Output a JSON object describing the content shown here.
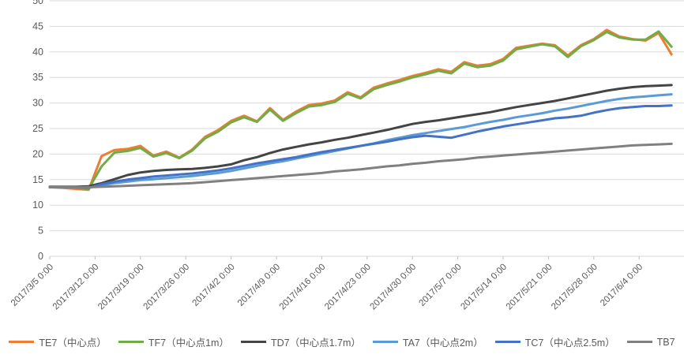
{
  "chart_data": {
    "type": "line",
    "title": "",
    "grid": true,
    "legend_position": "bottom",
    "x_axis": {
      "tick_labels": [
        "2017/3/5 0:00",
        "2017/3/12 0:00",
        "2017/3/19 0:00",
        "2017/3/26 0:00",
        "2017/4/2 0:00",
        "2017/4/9 0:00",
        "2017/4/16 0:00",
        "2017/4/23 0:00",
        "2017/4/30 0:00",
        "2017/5/7 0:00",
        "2017/5/14 0:00",
        "2017/5/21 0:00",
        "2017/5/28 0:00",
        "2017/6/4 0:00"
      ],
      "tick_days": [
        0,
        7,
        14,
        21,
        28,
        35,
        42,
        49,
        56,
        63,
        70,
        77,
        84,
        91
      ]
    },
    "y_axis": {
      "min": 0,
      "max": 50,
      "ticks": [
        0,
        5,
        10,
        15,
        20,
        25,
        30,
        35,
        40,
        45,
        50
      ]
    },
    "sample_days": [
      0,
      2,
      4,
      6,
      8,
      10,
      12,
      14,
      16,
      18,
      20,
      22,
      24,
      26,
      28,
      30,
      32,
      34,
      36,
      38,
      40,
      42,
      44,
      46,
      48,
      50,
      52,
      54,
      56,
      58,
      60,
      62,
      64,
      66,
      68,
      70,
      72,
      74,
      76,
      78,
      80,
      82,
      84,
      86,
      88,
      90,
      92,
      94,
      96
    ],
    "series": [
      {
        "name": "TE7（中心点）",
        "color": "#ED7D31",
        "values": [
          13.5,
          13.4,
          13.2,
          13.0,
          19.6,
          20.8,
          21.0,
          21.6,
          19.7,
          20.5,
          19.3,
          20.9,
          23.4,
          24.7,
          26.5,
          27.5,
          26.4,
          29.0,
          26.7,
          28.3,
          29.6,
          29.9,
          30.5,
          32.1,
          31.1,
          33.0,
          33.8,
          34.5,
          35.3,
          35.9,
          36.6,
          36.1,
          38.0,
          37.3,
          37.6,
          38.6,
          40.8,
          41.2,
          41.6,
          41.3,
          39.3,
          41.3,
          42.5,
          44.3,
          43.0,
          42.5,
          42.2,
          43.7,
          39.5
        ]
      },
      {
        "name": "TF7（中心点1m）",
        "color": "#70AD47",
        "values": [
          13.6,
          13.5,
          13.4,
          13.2,
          17.6,
          20.3,
          20.6,
          21.2,
          19.5,
          20.2,
          19.2,
          20.7,
          23.1,
          24.4,
          26.2,
          27.2,
          26.3,
          28.7,
          26.5,
          28.0,
          29.3,
          29.6,
          30.2,
          31.8,
          30.9,
          32.7,
          33.5,
          34.2,
          35.0,
          35.6,
          36.3,
          35.8,
          37.7,
          37.0,
          37.3,
          38.3,
          40.5,
          41.0,
          41.5,
          41.1,
          39.0,
          41.1,
          42.3,
          43.9,
          42.8,
          42.4,
          42.4,
          44.0,
          41.0
        ]
      },
      {
        "name": "TD7（中心点1.7m）",
        "color": "#444444",
        "values": [
          13.6,
          13.6,
          13.6,
          13.7,
          14.3,
          15.1,
          15.9,
          16.4,
          16.7,
          16.9,
          17.0,
          17.1,
          17.3,
          17.6,
          18.0,
          18.8,
          19.4,
          20.2,
          20.9,
          21.4,
          21.9,
          22.3,
          22.8,
          23.2,
          23.7,
          24.2,
          24.7,
          25.3,
          25.9,
          26.3,
          26.6,
          27.0,
          27.4,
          27.8,
          28.2,
          28.7,
          29.2,
          29.6,
          30.0,
          30.4,
          30.9,
          31.4,
          31.9,
          32.4,
          32.8,
          33.1,
          33.3,
          33.4,
          33.5
        ]
      },
      {
        "name": "TA7（中心点2m）",
        "color": "#5B9BD5",
        "values": [
          13.5,
          13.5,
          13.4,
          13.4,
          13.9,
          14.3,
          14.6,
          14.9,
          15.1,
          15.3,
          15.5,
          15.7,
          16.0,
          16.3,
          16.7,
          17.2,
          17.7,
          18.2,
          18.6,
          19.1,
          19.6,
          20.1,
          20.6,
          21.1,
          21.6,
          22.1,
          22.7,
          23.2,
          23.7,
          24.1,
          24.5,
          24.9,
          25.3,
          25.8,
          26.3,
          26.7,
          27.2,
          27.6,
          28.0,
          28.5,
          28.9,
          29.4,
          29.9,
          30.4,
          30.8,
          31.1,
          31.3,
          31.5,
          31.7
        ]
      },
      {
        "name": "TC7（中心点2.5m）",
        "color": "#4472C4",
        "values": [
          13.5,
          13.5,
          13.5,
          13.4,
          14.1,
          14.6,
          15.0,
          15.3,
          15.6,
          15.8,
          16.0,
          16.2,
          16.5,
          16.8,
          17.2,
          17.7,
          18.2,
          18.6,
          19.0,
          19.4,
          19.9,
          20.4,
          20.8,
          21.2,
          21.6,
          22.0,
          22.4,
          22.9,
          23.3,
          23.6,
          23.4,
          23.2,
          23.8,
          24.4,
          24.9,
          25.4,
          25.8,
          26.2,
          26.6,
          27.0,
          27.2,
          27.5,
          28.1,
          28.6,
          29.0,
          29.2,
          29.4,
          29.4,
          29.5
        ]
      },
      {
        "name": "TB7",
        "color": "#808080",
        "values": [
          13.5,
          13.5,
          13.5,
          13.5,
          13.6,
          13.7,
          13.8,
          13.9,
          14.0,
          14.1,
          14.2,
          14.3,
          14.5,
          14.7,
          14.9,
          15.1,
          15.3,
          15.5,
          15.7,
          15.9,
          16.1,
          16.3,
          16.6,
          16.8,
          17.0,
          17.3,
          17.6,
          17.8,
          18.1,
          18.3,
          18.6,
          18.8,
          19.0,
          19.3,
          19.5,
          19.7,
          19.9,
          20.1,
          20.3,
          20.5,
          20.7,
          20.9,
          21.1,
          21.3,
          21.5,
          21.7,
          21.8,
          21.9,
          22.0
        ]
      }
    ],
    "styles": {
      "grid_color": "#D9D9D9",
      "axis_tick_color": "#BFBFBF",
      "axis_text_color": "#595959",
      "background": "#FFFFFF"
    }
  }
}
